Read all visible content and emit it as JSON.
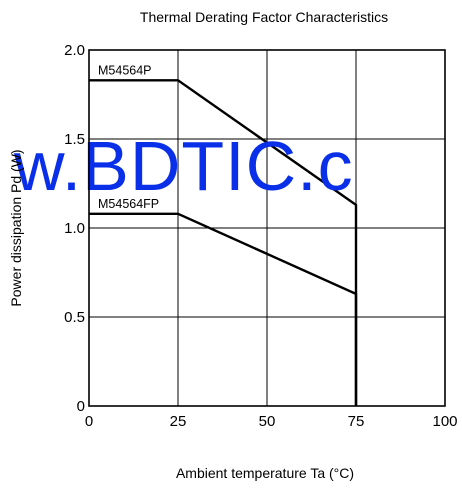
{
  "chart_data": {
    "type": "line",
    "title": "Thermal Derating Factor Characteristics",
    "xlabel": "Ambient temperature  Ta (°C)",
    "ylabel": "Power dissipation  Pd (W)",
    "xlim": [
      0,
      100
    ],
    "ylim": [
      0,
      2.0
    ],
    "xticks": [
      "0",
      "25",
      "50",
      "75",
      "100"
    ],
    "yticks": [
      "0",
      "0.5",
      "1.0",
      "1.5",
      "2.0"
    ],
    "xtick_values": [
      0,
      25,
      50,
      75,
      100
    ],
    "ytick_values": [
      0,
      0.5,
      1.0,
      1.5,
      2.0
    ],
    "grid": true,
    "series": [
      {
        "name": "M54564P",
        "x": [
          0,
          25,
          75,
          75
        ],
        "y": [
          1.83,
          1.83,
          1.13,
          0
        ]
      },
      {
        "name": "M54564FP",
        "x": [
          0,
          25,
          75,
          75
        ],
        "y": [
          1.08,
          1.08,
          0.63,
          0
        ]
      }
    ]
  },
  "watermark": {
    "text": "w.BDTIC.c",
    "color": "#0a2fe8"
  }
}
